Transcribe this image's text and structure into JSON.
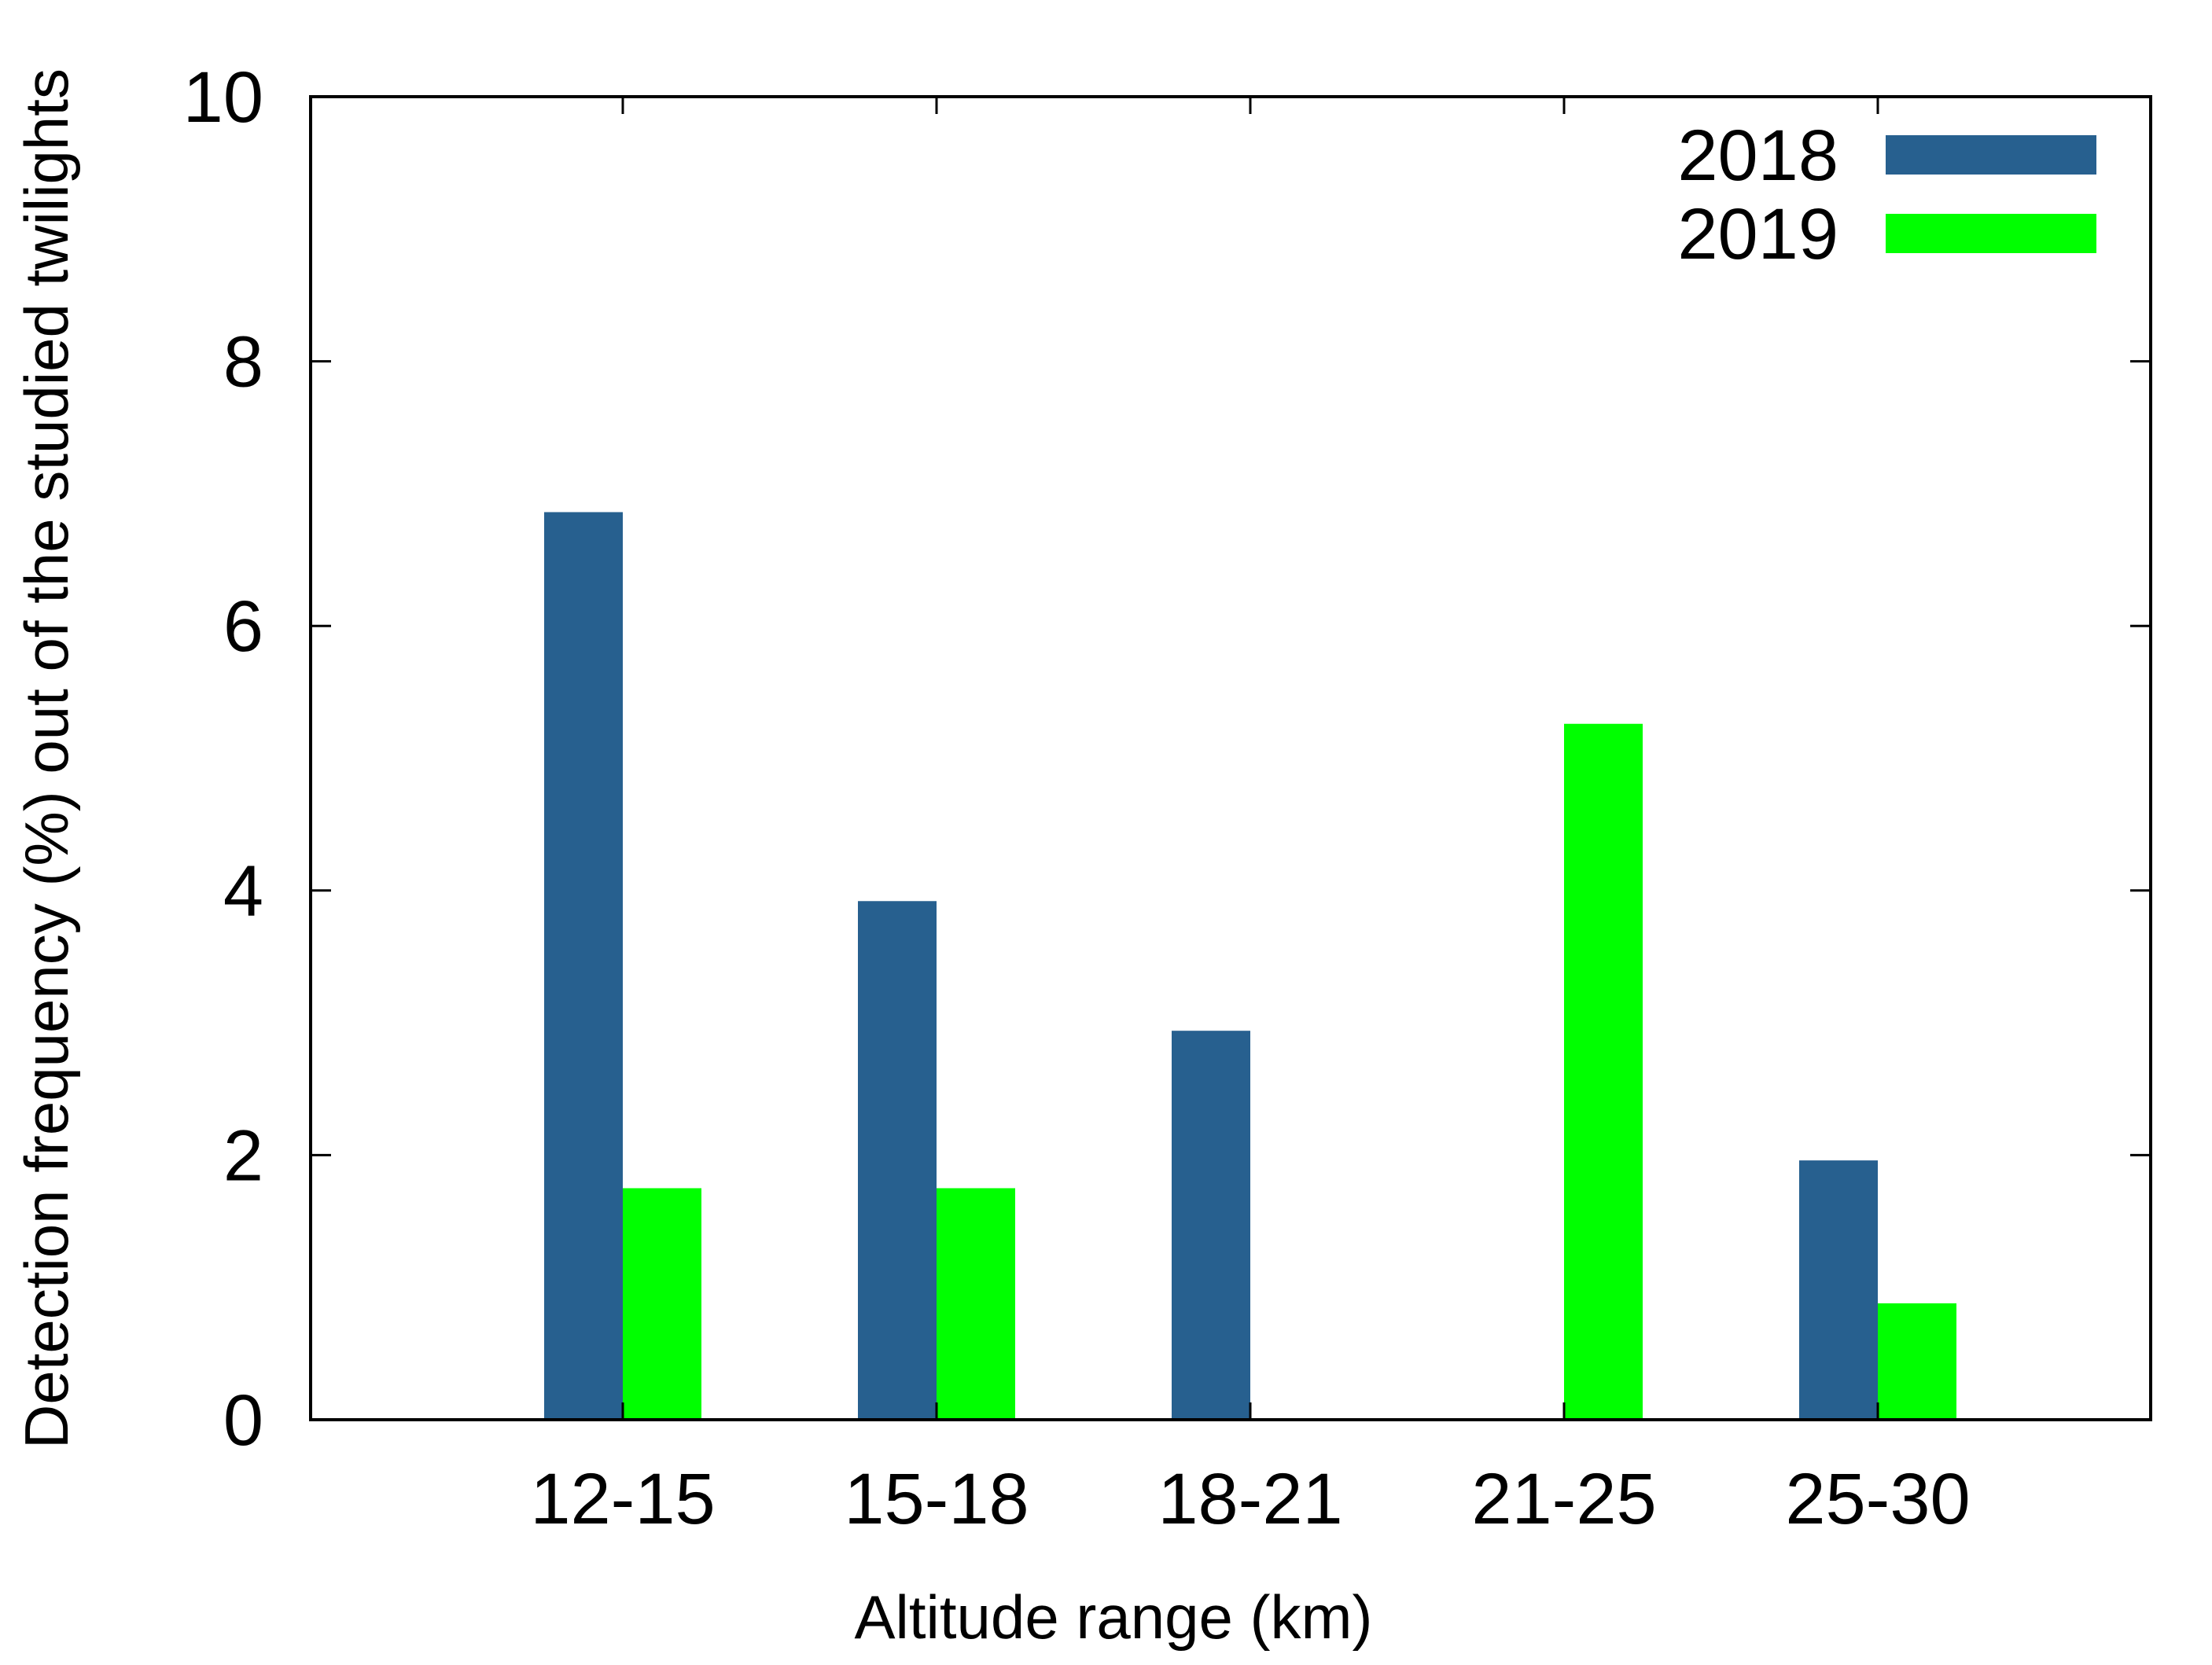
{
  "chart_data": {
    "type": "bar",
    "title": "",
    "xlabel": "Altitude range (km)",
    "ylabel": "Detection frequency (%) out of the studied twilights",
    "categories": [
      "12-15",
      "15-18",
      "18-21",
      "21-25",
      "25-30"
    ],
    "series": [
      {
        "name": "2018",
        "color": "#27608f",
        "values": [
          6.86,
          3.92,
          2.94,
          0,
          1.96
        ]
      },
      {
        "name": "2019",
        "color": "#00ff00",
        "values": [
          1.75,
          1.75,
          0,
          5.26,
          0.88
        ]
      }
    ],
    "ylim": [
      0,
      10
    ],
    "yticks": [
      0,
      2,
      4,
      6,
      8,
      10
    ],
    "grid": false,
    "legend_position": "top-right"
  }
}
